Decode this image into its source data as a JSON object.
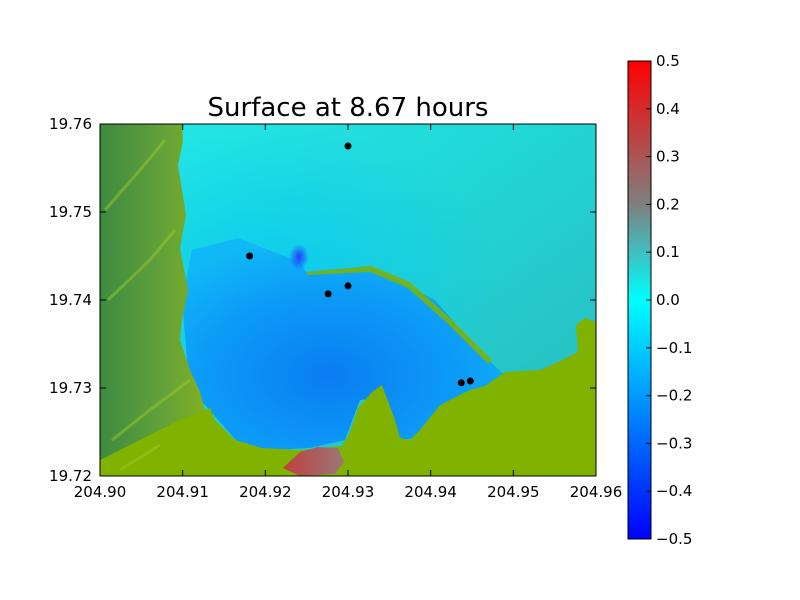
{
  "chart_data": {
    "type": "heatmap",
    "title": "Surface at 8.67 hours",
    "xlabel": "",
    "ylabel": "",
    "xlim": [
      204.9,
      204.96
    ],
    "ylim": [
      19.72,
      19.76
    ],
    "x_ticks": [
      "204.90",
      "204.91",
      "204.92",
      "204.93",
      "204.94",
      "204.95",
      "204.96"
    ],
    "y_ticks": [
      "19.72",
      "19.73",
      "19.74",
      "19.75",
      "19.76"
    ],
    "colorbar": {
      "range": [
        -0.5,
        0.5
      ],
      "ticks": [
        "0.5",
        "0.4",
        "0.3",
        "0.2",
        "0.1",
        "0.0",
        "−0.1",
        "−0.2",
        "−0.3",
        "−0.4",
        "−0.5"
      ],
      "colors": {
        "low": "#0000ff",
        "mid": "#00ffff",
        "mid_high": "#7f7f7f",
        "high": "#ff0000"
      }
    },
    "land_color": "#80b300",
    "gauges": [
      {
        "lon": 204.93,
        "lat": 19.7575
      },
      {
        "lon": 204.9181,
        "lat": 19.745
      },
      {
        "lon": 204.9276,
        "lat": 19.7407
      },
      {
        "lon": 204.93,
        "lat": 19.7416
      },
      {
        "lon": 204.9437,
        "lat": 19.7306
      },
      {
        "lon": 204.9448,
        "lat": 19.7308
      }
    ]
  }
}
